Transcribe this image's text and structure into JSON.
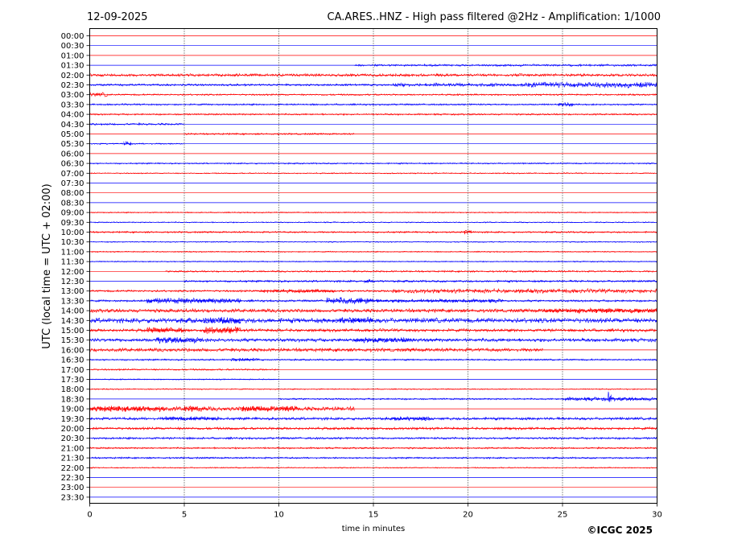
{
  "header": {
    "date": "12-09-2025",
    "title": "CA.ARES..HNZ - High pass filtered @2Hz - Amplification: 1/1000"
  },
  "footer": {
    "copyright": "©ICGC 2025"
  },
  "colors": {
    "trace_red": "#ff0000",
    "trace_blue": "#0000ff",
    "grid": "#000000"
  },
  "chart_data": {
    "type": "line",
    "subtype": "helicorder",
    "title": "CA.ARES..HNZ - High pass filtered @2Hz - Amplification: 1/1000",
    "xlabel": "time in minutes",
    "ylabel": "UTC (local time = UTC + 02:00)",
    "xlim": [
      0,
      30
    ],
    "xticks": [
      "0",
      "5",
      "10",
      "15",
      "20",
      "25",
      "30"
    ],
    "grid": "vertical dotted at 5, 10, 15, 20, 25",
    "trace_colors_alternate": [
      "red",
      "blue"
    ],
    "rows": [
      {
        "label": "00:00",
        "color": "red",
        "activity": []
      },
      {
        "label": "00:30",
        "color": "blue",
        "activity": []
      },
      {
        "label": "01:00",
        "color": "red",
        "activity": []
      },
      {
        "label": "01:30",
        "color": "blue",
        "activity": [
          [
            14,
            30,
            1.5
          ]
        ]
      },
      {
        "label": "02:00",
        "color": "red",
        "activity": [
          [
            0,
            30,
            2
          ]
        ]
      },
      {
        "label": "02:30",
        "color": "blue",
        "activity": [
          [
            0,
            16,
            1.5
          ],
          [
            16,
            23,
            2.5
          ],
          [
            23,
            30,
            4
          ]
        ]
      },
      {
        "label": "03:00",
        "color": "red",
        "activity": [
          [
            0,
            1,
            3
          ],
          [
            1,
            30,
            1.2
          ]
        ]
      },
      {
        "label": "03:30",
        "color": "blue",
        "activity": [
          [
            0,
            30,
            1.2
          ],
          [
            24.8,
            25.6,
            3
          ]
        ]
      },
      {
        "label": "04:00",
        "color": "red",
        "activity": [
          [
            0,
            30,
            1.2
          ]
        ]
      },
      {
        "label": "04:30",
        "color": "blue",
        "activity": [
          [
            0,
            5,
            1.5
          ]
        ]
      },
      {
        "label": "05:00",
        "color": "red",
        "activity": [
          [
            5,
            14,
            1.2
          ]
        ]
      },
      {
        "label": "05:30",
        "color": "blue",
        "activity": [
          [
            1.8,
            2.2,
            3.5
          ],
          [
            0,
            5,
            1
          ]
        ]
      },
      {
        "label": "06:00",
        "color": "red",
        "activity": []
      },
      {
        "label": "06:30",
        "color": "blue",
        "activity": [
          [
            0,
            30,
            1
          ]
        ]
      },
      {
        "label": "07:00",
        "color": "red",
        "activity": [
          [
            0,
            30,
            0.8
          ]
        ]
      },
      {
        "label": "07:30",
        "color": "blue",
        "activity": []
      },
      {
        "label": "08:00",
        "color": "red",
        "activity": []
      },
      {
        "label": "08:30",
        "color": "blue",
        "activity": []
      },
      {
        "label": "09:00",
        "color": "red",
        "activity": [
          [
            0,
            30,
            0.8
          ]
        ]
      },
      {
        "label": "09:30",
        "color": "blue",
        "activity": [
          [
            0,
            30,
            0.8
          ]
        ]
      },
      {
        "label": "10:00",
        "color": "red",
        "activity": [
          [
            0,
            30,
            1.2
          ],
          [
            19.8,
            20.2,
            3
          ]
        ]
      },
      {
        "label": "10:30",
        "color": "blue",
        "activity": [
          [
            0,
            30,
            0.8
          ]
        ]
      },
      {
        "label": "11:00",
        "color": "red",
        "activity": [
          [
            0,
            30,
            0.8
          ]
        ]
      },
      {
        "label": "11:30",
        "color": "blue",
        "activity": [
          [
            0,
            30,
            0.8
          ]
        ]
      },
      {
        "label": "12:00",
        "color": "red",
        "activity": [
          [
            4,
            30,
            1.2
          ]
        ]
      },
      {
        "label": "12:30",
        "color": "blue",
        "activity": [
          [
            5,
            30,
            1.5
          ],
          [
            14.5,
            15,
            3
          ]
        ]
      },
      {
        "label": "13:00",
        "color": "red",
        "activity": [
          [
            0,
            16,
            1.5
          ],
          [
            9,
            13,
            2.5
          ],
          [
            16,
            30,
            3
          ]
        ]
      },
      {
        "label": "13:30",
        "color": "blue",
        "activity": [
          [
            0,
            30,
            1.5
          ],
          [
            3,
            8,
            4
          ],
          [
            12.5,
            15,
            5
          ],
          [
            15,
            22,
            2.5
          ]
        ]
      },
      {
        "label": "14:00",
        "color": "red",
        "activity": [
          [
            0,
            30,
            2.5
          ],
          [
            24,
            30,
            3.5
          ]
        ]
      },
      {
        "label": "14:30",
        "color": "blue",
        "activity": [
          [
            0,
            30,
            3.5
          ],
          [
            6,
            8,
            5
          ],
          [
            13,
            15,
            4.5
          ]
        ]
      },
      {
        "label": "15:00",
        "color": "red",
        "activity": [
          [
            0,
            30,
            2.2
          ],
          [
            3,
            5,
            4
          ],
          [
            6,
            8,
            5
          ]
        ]
      },
      {
        "label": "15:30",
        "color": "blue",
        "activity": [
          [
            0,
            30,
            2.5
          ],
          [
            3.5,
            6,
            4.5
          ],
          [
            14,
            17,
            3.5
          ]
        ]
      },
      {
        "label": "16:00",
        "color": "red",
        "activity": [
          [
            0,
            24,
            2.5
          ]
        ]
      },
      {
        "label": "16:30",
        "color": "blue",
        "activity": [
          [
            0,
            30,
            1.2
          ],
          [
            7.5,
            9,
            2.5
          ]
        ]
      },
      {
        "label": "17:00",
        "color": "red",
        "activity": [
          [
            0,
            10,
            1.2
          ]
        ]
      },
      {
        "label": "17:30",
        "color": "blue",
        "activity": [
          [
            0,
            10,
            0.8
          ]
        ]
      },
      {
        "label": "18:00",
        "color": "red",
        "activity": [
          [
            0,
            30,
            0.8
          ]
        ]
      },
      {
        "label": "18:30",
        "color": "blue",
        "activity": [
          [
            10,
            30,
            1.2
          ],
          [
            25,
            30,
            2.5
          ],
          [
            27.4,
            27.6,
            14
          ]
        ]
      },
      {
        "label": "19:00",
        "color": "red",
        "activity": [
          [
            0,
            14,
            3
          ],
          [
            0,
            4,
            4
          ],
          [
            5,
            6,
            4
          ],
          [
            8,
            11,
            4
          ]
        ]
      },
      {
        "label": "19:30",
        "color": "blue",
        "activity": [
          [
            0,
            30,
            2
          ],
          [
            4,
            7,
            3
          ],
          [
            16,
            18,
            3
          ]
        ]
      },
      {
        "label": "20:00",
        "color": "red",
        "activity": [
          [
            0,
            30,
            1.8
          ]
        ]
      },
      {
        "label": "20:30",
        "color": "blue",
        "activity": [
          [
            0,
            30,
            1.5
          ]
        ]
      },
      {
        "label": "21:00",
        "color": "red",
        "activity": [
          [
            0,
            30,
            1.2
          ]
        ]
      },
      {
        "label": "21:30",
        "color": "blue",
        "activity": [
          [
            0,
            30,
            1.2
          ]
        ]
      },
      {
        "label": "22:00",
        "color": "red",
        "activity": [
          [
            0,
            30,
            0.8
          ]
        ]
      },
      {
        "label": "22:30",
        "color": "blue",
        "activity": []
      },
      {
        "label": "23:00",
        "color": "red",
        "activity": []
      },
      {
        "label": "23:30",
        "color": "blue",
        "activity": []
      }
    ]
  }
}
